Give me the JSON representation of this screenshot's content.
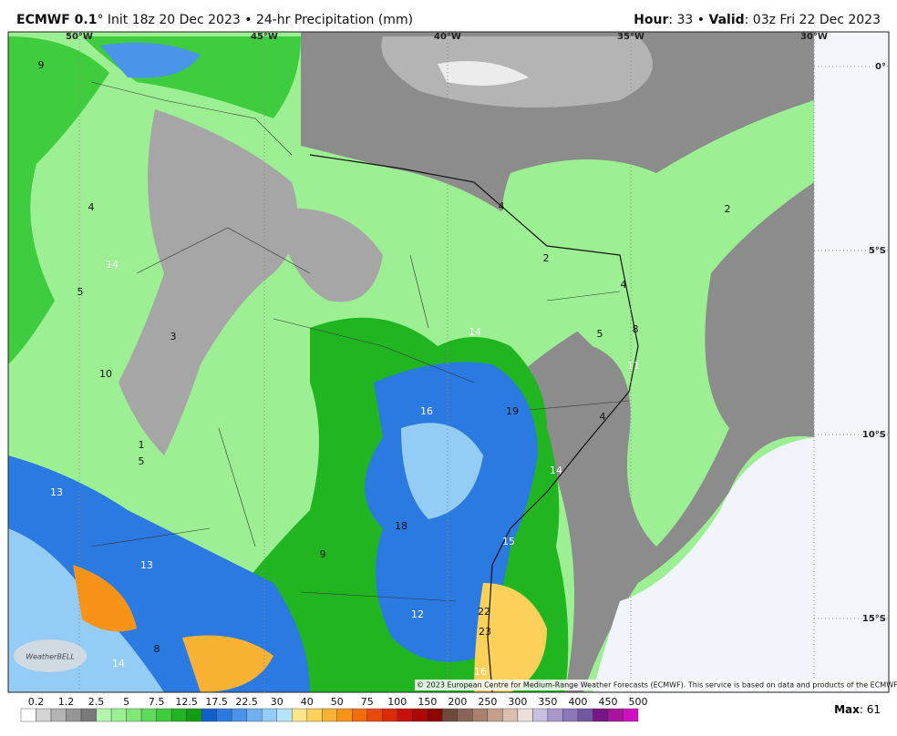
{
  "header": {
    "model": "ECMWF 0.1",
    "degree": "°",
    "init": " Init 18z 20 Dec 2023 • 24-hr Precipitation (mm)",
    "hour_label": "Hour",
    "hour": ": 33 • ",
    "valid_label": "Valid",
    "valid": ": 03z Fri 22 Dec 2023"
  },
  "map": {
    "longitudes": [
      "50°W",
      "45°W",
      "40°W",
      "35°W",
      "30°W"
    ],
    "latitudes": [
      "0°",
      "5°S",
      "10°S",
      "15°S"
    ],
    "labels": [
      9,
      4,
      14,
      5,
      3,
      10,
      1,
      5,
      13,
      13,
      8,
      14,
      4,
      2,
      2,
      4,
      8,
      5,
      14,
      11,
      16,
      19,
      4,
      14,
      18,
      9,
      15,
      12,
      22,
      23,
      16
    ],
    "logo": "WeatherBELL",
    "copyright": "© 2023 European Centre for Medium-Range Weather Forecasts (ECMWF). This service is based on data and products of the ECMWF."
  },
  "colorbar": {
    "ticks": [
      "0.2",
      "1.2",
      "2.5",
      "5",
      "7.5",
      "12.5",
      "17.5",
      "22.5",
      "30",
      "40",
      "50",
      "75",
      "100",
      "150",
      "200",
      "250",
      "300",
      "350",
      "400",
      "450",
      "500"
    ],
    "colors": [
      "#ffffff",
      "#d4d4d4",
      "#b4b4b4",
      "#969696",
      "#7a7a7a",
      "#b6f5b0",
      "#9cf093",
      "#7fe877",
      "#5fdb5a",
      "#3fcc3f",
      "#22b522",
      "#129c12",
      "#1060d0",
      "#2a7ae2",
      "#4a94ea",
      "#6eb0f0",
      "#94ccf6",
      "#b6e2fa",
      "#fde68a",
      "#fbd15a",
      "#f9b233",
      "#f79418",
      "#f26c0c",
      "#ea4a08",
      "#dc2a06",
      "#c81010",
      "#ac0808",
      "#8c0404",
      "#6e4a3a",
      "#8a6454",
      "#a8826e",
      "#c4a08c",
      "#dcbeb0",
      "#ece0dc",
      "#c8c0e0",
      "#a898cc",
      "#8c78b8",
      "#7058a0",
      "#7a1488",
      "#a8149e",
      "#d010c0"
    ]
  },
  "max": {
    "label": "Max",
    "value": ": 61"
  }
}
